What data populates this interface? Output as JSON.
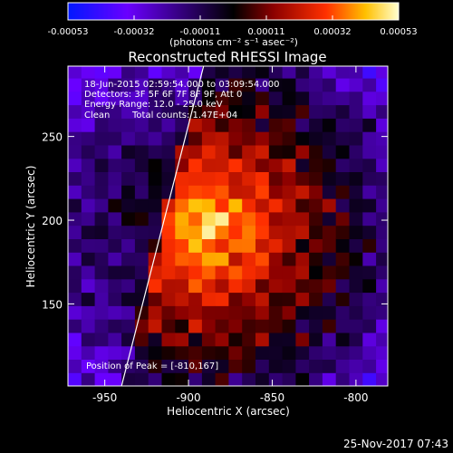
{
  "chart_data": {
    "type": "heatmap",
    "title": "Reconstructed RHESSI Image",
    "xlabel": "Heliocentric X (arcsec)",
    "ylabel": "Heliocentric Y (arcsec)",
    "xlim": [
      -972,
      -781
    ],
    "ylim": [
      101,
      292
    ],
    "x_ticks": [
      -950,
      -900,
      -850,
      -800
    ],
    "y_ticks": [
      150,
      200,
      250
    ],
    "colorbar": {
      "ticks": [
        "-0.00053",
        "-0.00032",
        "-0.00011",
        "0.00011",
        "0.00032",
        "0.00053"
      ],
      "range": [
        -0.00053,
        0.00053
      ],
      "units": "(photons cm⁻² s⁻¹ asec⁻²)",
      "colors": [
        "#0018ff",
        "#6a00ff",
        "#000000",
        "#8b0000",
        "#ff3000",
        "#ffc000",
        "#ffffd0"
      ]
    },
    "annotations": {
      "time_range": "18-Jun-2015 02:59:54.000 to 03:09:54.000",
      "detectors": "Detectors: 3F 5F 6F 7F 8F 9F, Att 0",
      "energy": "Energy Range: 12.0 - 25.0 keV",
      "clean": "Clean",
      "total_counts": "Total counts: 1.47E+04",
      "peak": "Position of Peak = [-810,167]"
    },
    "peak": {
      "x": -810,
      "y": 167
    },
    "source_center": {
      "x": -890,
      "y": 195
    },
    "limb_line": [
      {
        "x": -940,
        "y": 101
      },
      {
        "x": -891,
        "y": 292
      }
    ],
    "grid": false
  },
  "footer": {
    "timestamp": "25-Nov-2017 07:43"
  }
}
